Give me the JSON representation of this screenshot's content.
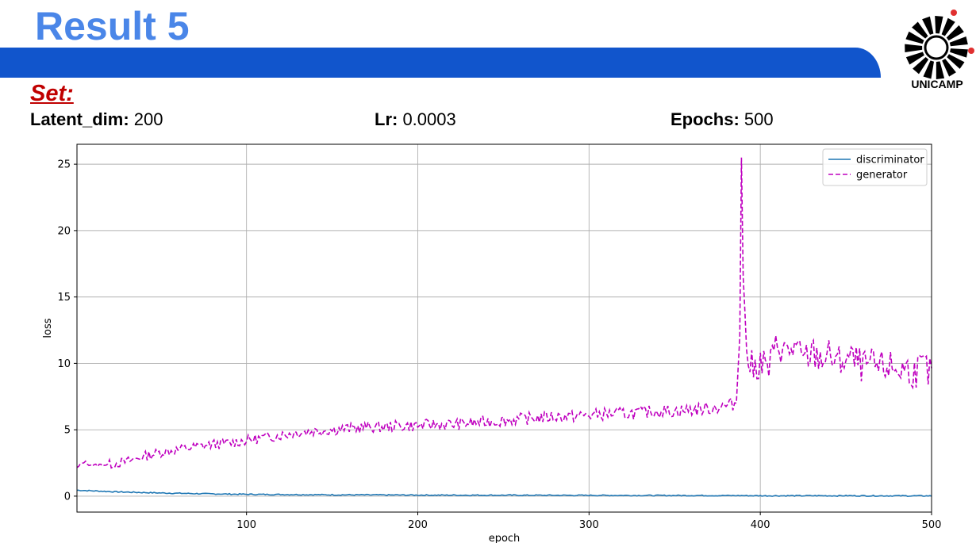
{
  "slide": {
    "title": "Result 5",
    "set_label": "Set:",
    "logo_text": "UNICAMP",
    "params": [
      {
        "label": "Latent_dim:",
        "value": " 200"
      },
      {
        "label": "Lr:",
        "value": " 0.0003"
      },
      {
        "label": "Epochs:",
        "value": " 500"
      }
    ]
  },
  "colors": {
    "title": "#4a86e8",
    "banner": "#1155cc",
    "set_label": "#c00000",
    "discriminator": "#1f77b4",
    "generator": "#bf00bf"
  },
  "chart_data": {
    "type": "line",
    "xlabel": "epoch",
    "ylabel": "loss",
    "xlim": [
      1,
      500
    ],
    "ylim": [
      -1.2,
      26.5
    ],
    "xticks": [
      100,
      200,
      300,
      400,
      500
    ],
    "yticks": [
      0,
      5,
      10,
      15,
      20,
      25
    ],
    "grid": true,
    "legend_position": "top-right",
    "series": [
      {
        "name": "discriminator",
        "style": "solid",
        "points": [
          [
            1,
            0.45
          ],
          [
            10,
            0.4
          ],
          [
            25,
            0.32
          ],
          [
            50,
            0.24
          ],
          [
            75,
            0.18
          ],
          [
            100,
            0.14
          ],
          [
            150,
            0.1
          ],
          [
            200,
            0.08
          ],
          [
            250,
            0.07
          ],
          [
            300,
            0.06
          ],
          [
            350,
            0.05
          ],
          [
            390,
            0.04
          ],
          [
            400,
            0.03
          ],
          [
            450,
            0.03
          ],
          [
            500,
            0.02
          ]
        ]
      },
      {
        "name": "generator",
        "style": "dashed",
        "points": [
          [
            1,
            2.1
          ],
          [
            5,
            2.6
          ],
          [
            10,
            2.3
          ],
          [
            20,
            2.4
          ],
          [
            30,
            2.6
          ],
          [
            40,
            3.0
          ],
          [
            50,
            3.3
          ],
          [
            60,
            3.5
          ],
          [
            70,
            3.7
          ],
          [
            80,
            3.9
          ],
          [
            90,
            4.0
          ],
          [
            100,
            4.2
          ],
          [
            110,
            4.4
          ],
          [
            120,
            4.6
          ],
          [
            130,
            4.8
          ],
          [
            140,
            4.9
          ],
          [
            150,
            5.0
          ],
          [
            160,
            5.1
          ],
          [
            170,
            5.2
          ],
          [
            180,
            5.2
          ],
          [
            190,
            5.3
          ],
          [
            200,
            5.3
          ],
          [
            210,
            5.4
          ],
          [
            220,
            5.4
          ],
          [
            230,
            5.5
          ],
          [
            240,
            5.6
          ],
          [
            250,
            5.7
          ],
          [
            260,
            5.8
          ],
          [
            270,
            5.9
          ],
          [
            280,
            6.0
          ],
          [
            290,
            6.0
          ],
          [
            300,
            6.1
          ],
          [
            310,
            6.2
          ],
          [
            320,
            6.2
          ],
          [
            330,
            6.3
          ],
          [
            340,
            6.4
          ],
          [
            350,
            6.4
          ],
          [
            360,
            6.5
          ],
          [
            370,
            6.6
          ],
          [
            380,
            6.8
          ],
          [
            386,
            7.0
          ],
          [
            388,
            12
          ],
          [
            389,
            25.5
          ],
          [
            390,
            16.5
          ],
          [
            391,
            14
          ],
          [
            392,
            11
          ],
          [
            394,
            10
          ],
          [
            396,
            9.5
          ],
          [
            400,
            10.2
          ],
          [
            405,
            9.6
          ],
          [
            410,
            11.5
          ],
          [
            415,
            10.8
          ],
          [
            420,
            11.2
          ],
          [
            425,
            10.2
          ],
          [
            430,
            10.8
          ],
          [
            435,
            10.4
          ],
          [
            440,
            10.6
          ],
          [
            445,
            10.0
          ],
          [
            450,
            10.4
          ],
          [
            455,
            10.2
          ],
          [
            460,
            9.7
          ],
          [
            465,
            9.9
          ],
          [
            470,
            9.6
          ],
          [
            475,
            9.8
          ],
          [
            480,
            9.5
          ],
          [
            485,
            9.6
          ],
          [
            490,
            9.3
          ],
          [
            495,
            9.8
          ],
          [
            500,
            9.0
          ]
        ]
      }
    ]
  }
}
